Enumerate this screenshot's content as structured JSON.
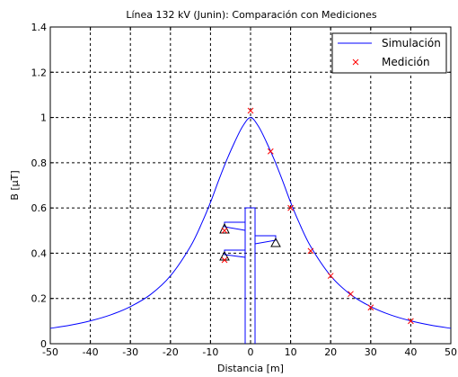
{
  "chart_data": {
    "type": "line",
    "title": "Línea 132 kV (Junin): Comparación con Mediciones",
    "xlabel": "Distancia [m]",
    "ylabel": "B [μT]",
    "xlim": [
      -50,
      50
    ],
    "ylim": [
      0,
      1.4
    ],
    "xticks": [
      -50,
      -40,
      -30,
      -20,
      -10,
      0,
      10,
      20,
      30,
      40,
      50
    ],
    "yticks": [
      0,
      0.2,
      0.4,
      0.6,
      0.8,
      1,
      1.2,
      1.4
    ],
    "xtick_labels": [
      "-50",
      "-40",
      "-30",
      "-20",
      "-10",
      "0",
      "10",
      "20",
      "30",
      "40",
      "50"
    ],
    "ytick_labels": [
      "0",
      "0.2",
      "0.4",
      "0.6",
      "0.8",
      "1",
      "1.2",
      "1.4"
    ],
    "grid": true,
    "legend_position": "top-right",
    "series": [
      {
        "name": "Simulación",
        "kind": "line",
        "color": "#0000ff",
        "x": [
          -50,
          -45,
          -40,
          -35,
          -30,
          -25,
          -20,
          -15,
          -12,
          -10,
          -8,
          -6,
          -4,
          -2,
          0,
          2,
          4,
          6,
          8,
          10,
          12,
          15,
          20,
          25,
          30,
          35,
          40,
          45,
          50
        ],
        "y": [
          0.068,
          0.082,
          0.101,
          0.127,
          0.164,
          0.217,
          0.3,
          0.43,
          0.54,
          0.625,
          0.72,
          0.81,
          0.89,
          0.96,
          1.0,
          0.96,
          0.89,
          0.81,
          0.72,
          0.625,
          0.54,
          0.43,
          0.3,
          0.217,
          0.164,
          0.127,
          0.101,
          0.082,
          0.068
        ]
      },
      {
        "name": "Medición",
        "kind": "scatter",
        "color": "#ff0000",
        "x": [
          -6.5,
          -6.5,
          0,
          5,
          10,
          15,
          20,
          25,
          30,
          40
        ],
        "y": [
          0.5,
          0.37,
          1.03,
          0.85,
          0.6,
          0.41,
          0.3,
          0.22,
          0.16,
          0.1
        ]
      }
    ]
  }
}
